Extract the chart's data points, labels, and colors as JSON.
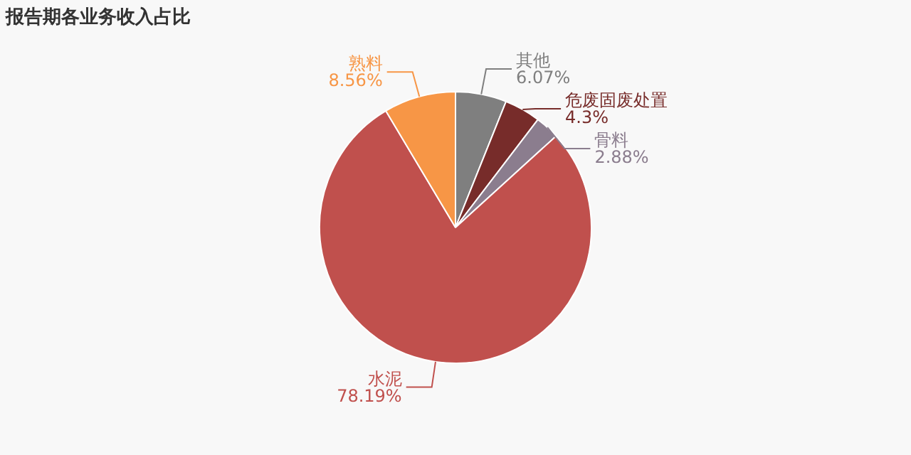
{
  "chart_data": {
    "type": "pie",
    "title": "报告期各业务收入占比",
    "categories": [
      "其他",
      "危废固废处置",
      "骨料",
      "水泥",
      "熟料"
    ],
    "values": [
      6.07,
      4.3,
      2.88,
      78.19,
      8.56
    ],
    "value_labels": [
      "6.07%",
      "4.3%",
      "2.88%",
      "78.19%",
      "8.56%"
    ],
    "colors": [
      "#7f7f7f",
      "#772c2a",
      "#8b7d8e",
      "#c0504d",
      "#f79646"
    ],
    "legend": false
  }
}
